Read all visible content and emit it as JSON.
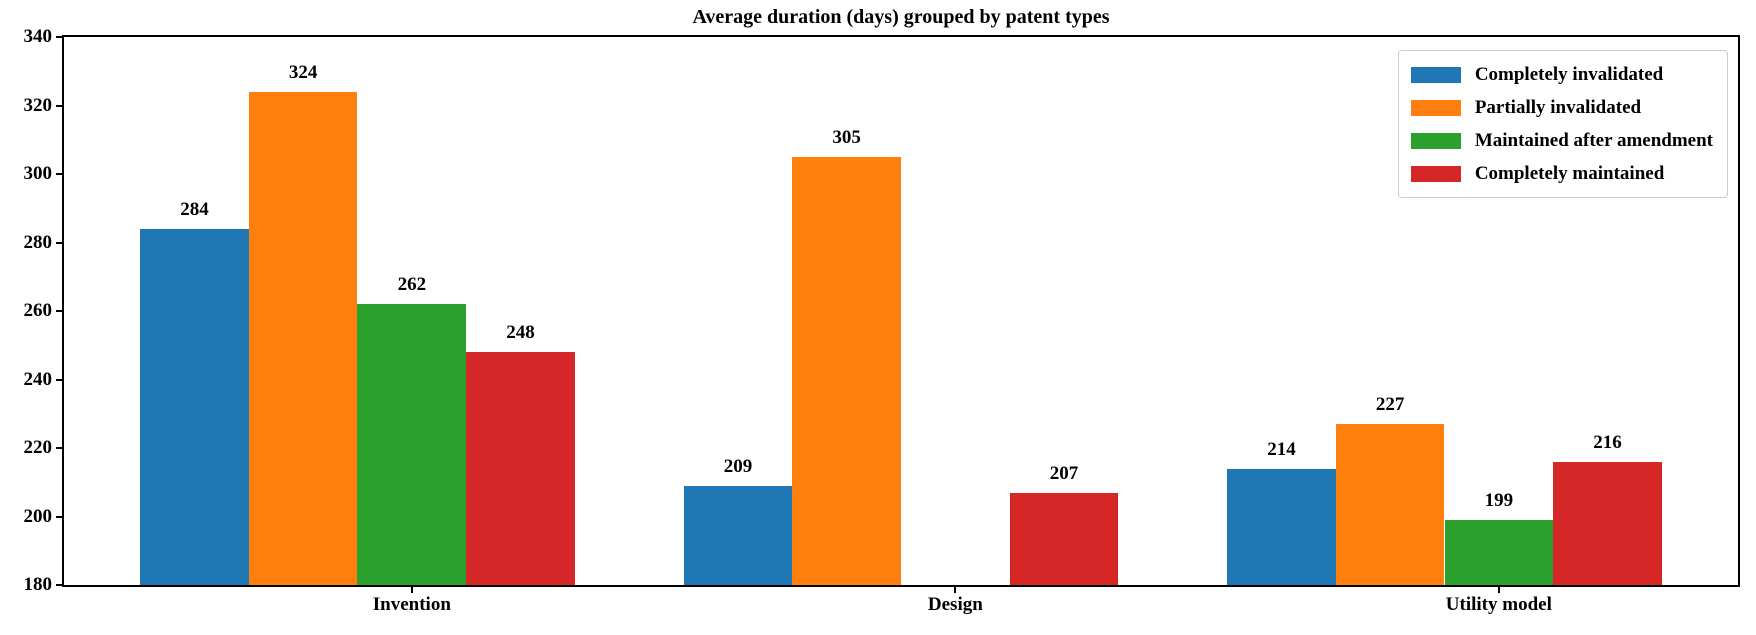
{
  "chart_data": {
    "type": "bar",
    "title": "Average duration (days) grouped by patent types",
    "categories": [
      "Invention",
      "Design",
      "Utility model"
    ],
    "series": [
      {
        "name": "Completely invalidated",
        "color": "#1f77b4",
        "values": [
          284,
          209,
          214
        ]
      },
      {
        "name": "Partially invalidated",
        "color": "#ff7f0e",
        "values": [
          324,
          305,
          227
        ]
      },
      {
        "name": "Maintained after amendment",
        "color": "#2ca02c",
        "values": [
          262,
          null,
          199
        ]
      },
      {
        "name": "Completely maintained",
        "color": "#d62728",
        "values": [
          248,
          207,
          216
        ]
      }
    ],
    "ylim": [
      180,
      340
    ],
    "yticks": [
      180,
      200,
      220,
      240,
      260,
      280,
      300,
      320,
      340
    ],
    "bar_labels": true,
    "grid": false,
    "legend_position": "upper right",
    "xlabel": "",
    "ylabel": ""
  }
}
